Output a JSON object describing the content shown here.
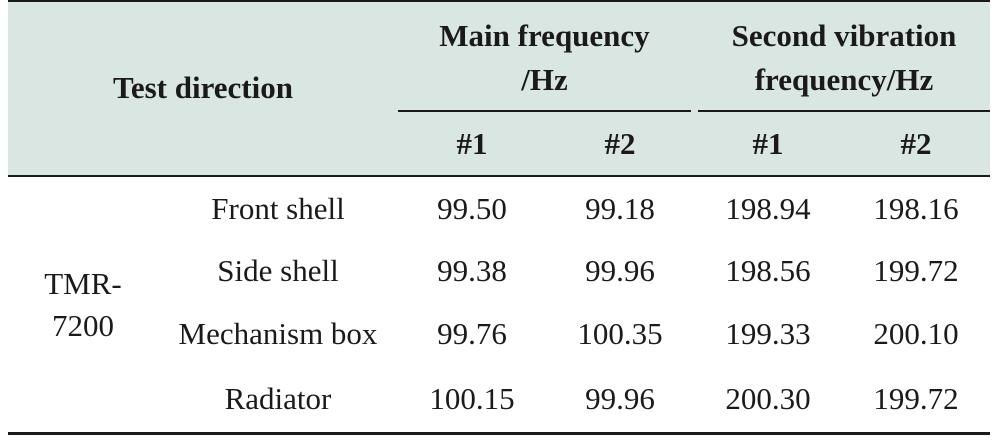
{
  "table": {
    "header": {
      "test_direction": "Test direction",
      "main_frequency_line1": "Main frequency",
      "main_frequency_line2": "/Hz",
      "second_vibration_line1": "Second vibration",
      "second_vibration_line2": "frequency/Hz",
      "sub_columns": [
        "#1",
        "#2",
        "#1",
        "#2"
      ]
    },
    "group_label_line1": "TMR-",
    "group_label_line2": "7200",
    "rows": [
      {
        "direction": "Front shell",
        "values": [
          "99.50",
          "99.18",
          "198.94",
          "198.16"
        ]
      },
      {
        "direction": "Side shell",
        "values": [
          "99.38",
          "99.96",
          "198.56",
          "199.72"
        ]
      },
      {
        "direction": "Mechanism box",
        "values": [
          "99.76",
          "100.35",
          "199.33",
          "200.10"
        ]
      },
      {
        "direction": "Radiator",
        "values": [
          "100.15",
          "99.96",
          "200.30",
          "199.72"
        ]
      }
    ]
  },
  "colors": {
    "header_background": "#d9e6e1",
    "rules": "#1a1a1a"
  }
}
